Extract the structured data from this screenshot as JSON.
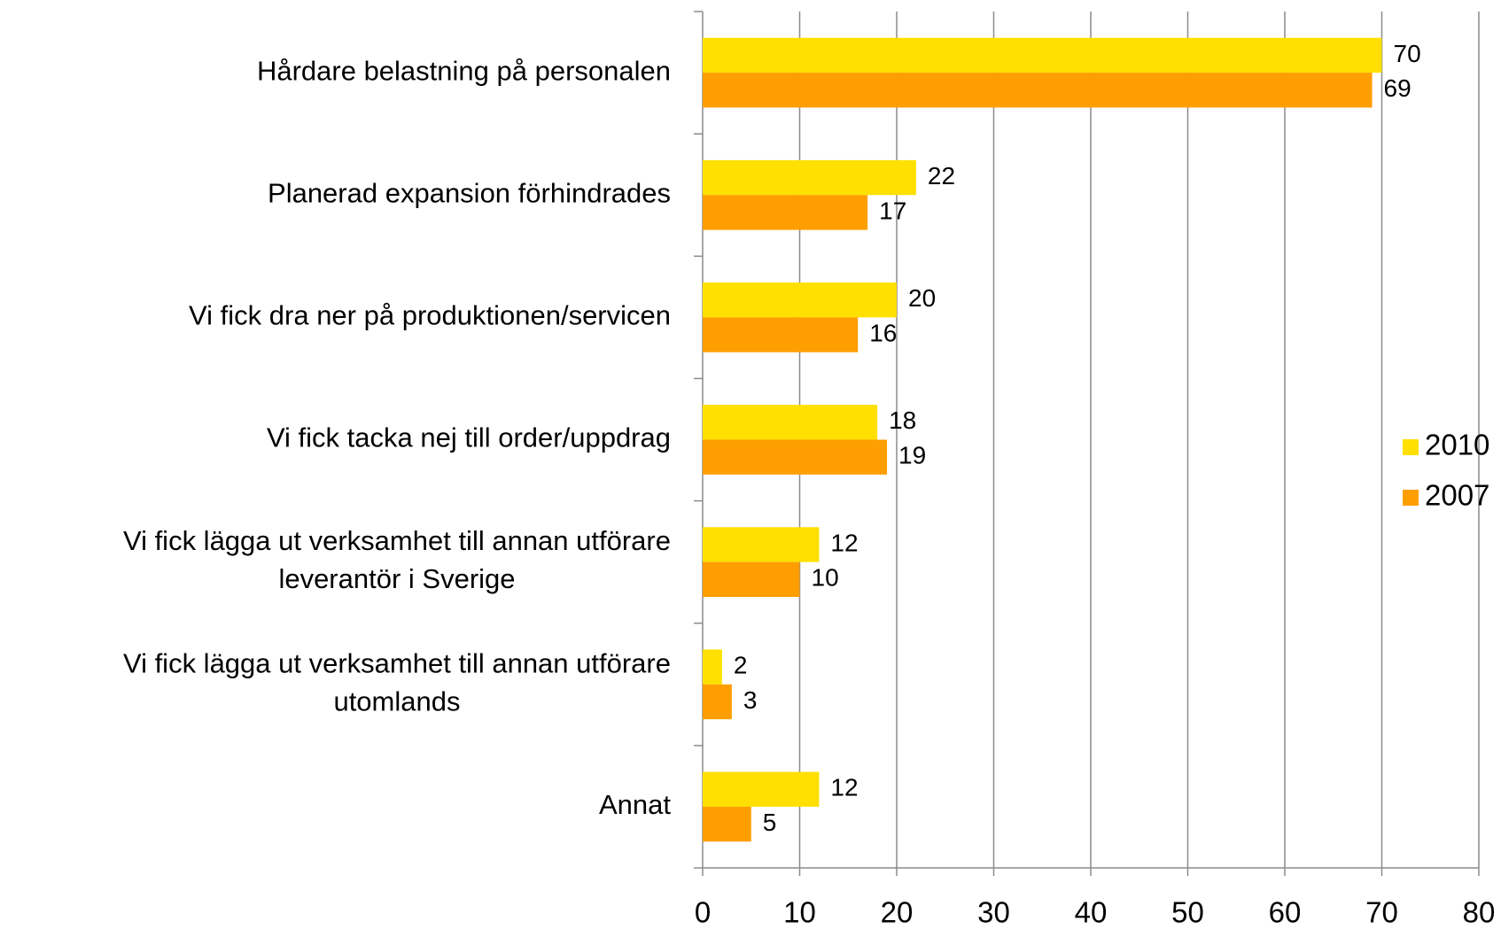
{
  "chart_data": {
    "type": "hbar",
    "categories": [
      "Hårdare belastning på personalen",
      "Planerad expansion förhindrades",
      "Vi fick dra ner på produktionen/servicen",
      "Vi fick tacka nej till order/uppdrag",
      "Vi fick lägga ut verksamhet till annan utförare\nleverantör i Sverige",
      "Vi fick lägga ut verksamhet till annan utförare\nutomlands",
      "Annat"
    ],
    "series": [
      {
        "name": "2010",
        "color": "#FFE000",
        "values": [
          70,
          22,
          20,
          18,
          12,
          2,
          12
        ]
      },
      {
        "name": "2007",
        "color": "#FF9E00",
        "values": [
          69,
          17,
          16,
          19,
          10,
          3,
          5
        ]
      }
    ],
    "xlim": [
      0,
      80
    ],
    "xticks": [
      0,
      10,
      20,
      30,
      40,
      50,
      60,
      70,
      80
    ],
    "grid": true,
    "legend": "right"
  }
}
